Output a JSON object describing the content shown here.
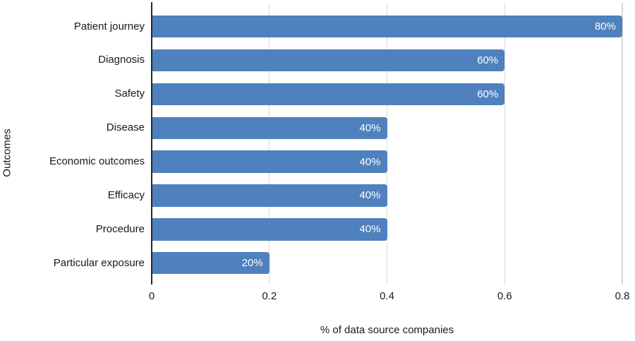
{
  "chart_data": {
    "type": "bar",
    "orientation": "horizontal",
    "title": "",
    "categories": [
      "Patient journey",
      "Diagnosis",
      "Safety",
      "Disease",
      "Economic outcomes",
      "Efficacy",
      "Procedure",
      "Particular exposure"
    ],
    "values": [
      0.8,
      0.6,
      0.6,
      0.4,
      0.4,
      0.4,
      0.4,
      0.2
    ],
    "bar_labels": [
      "80%",
      "60%",
      "60%",
      "40%",
      "40%",
      "40%",
      "40%",
      "20%"
    ],
    "xlabel": "% of data source companies",
    "ylabel": "Outcomes",
    "xlim": [
      0,
      0.8
    ],
    "xticks": [
      0,
      0.2,
      0.4,
      0.6,
      0.8
    ],
    "xtick_labels": [
      "0",
      "0.2",
      "0.4",
      "0.6",
      "0.8"
    ],
    "grid": "vertical-gridlines-on",
    "legend": "none",
    "colors": {
      "bar": "#4e81bd",
      "bar_label_text": "#ffffff",
      "gridline": "#d9d9d9",
      "axis_line": "#262626",
      "text": "#1a1a1a",
      "background": "#ffffff"
    }
  }
}
